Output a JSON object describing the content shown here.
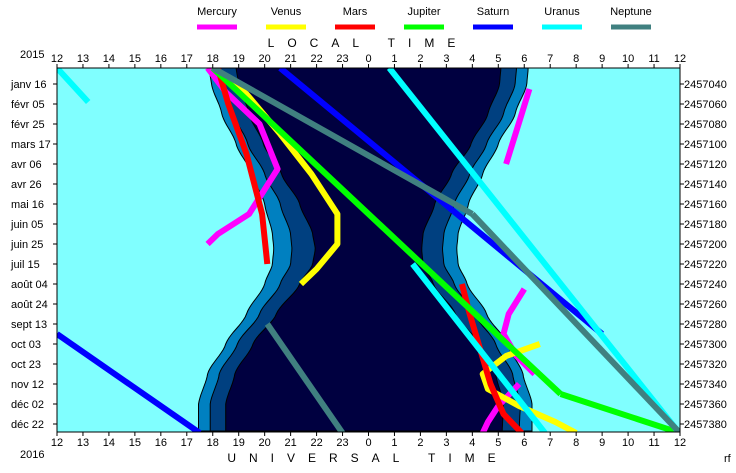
{
  "chart_data": {
    "type": "line",
    "legend_position": "top",
    "year_top": "2015",
    "year_bottom": "2016",
    "corner_label": "rf",
    "top_axis_title": "LOCAL TIME",
    "bottom_axis_title": "UNIVERSAL TIME",
    "x_ticks": [
      "12",
      "13",
      "14",
      "15",
      "16",
      "17",
      "18",
      "19",
      "20",
      "21",
      "22",
      "23",
      "0",
      "1",
      "2",
      "3",
      "4",
      "5",
      "6",
      "7",
      "8",
      "9",
      "10",
      "11",
      "12"
    ],
    "y_ticks_left": [
      "janv 16",
      "févr 05",
      "févr 25",
      "mars 17",
      "avr 06",
      "avr 26",
      "mai 16",
      "juin 05",
      "juin 25",
      "juil 15",
      "août 04",
      "août 24",
      "sept 13",
      "oct 03",
      "oct 23",
      "nov 12",
      "déc 02",
      "déc 22"
    ],
    "y_ticks_right": [
      "2457040",
      "2457060",
      "2457080",
      "2457100",
      "2457120",
      "2457140",
      "2457160",
      "2457180",
      "2457200",
      "2457220",
      "2457240",
      "2457260",
      "2457280",
      "2457300",
      "2457320",
      "2457340",
      "2457360",
      "2457380"
    ],
    "xlim_hours_from_noon": [
      0,
      24
    ],
    "ylim_days_from_jan16": [
      -16,
      349
    ],
    "colors": {
      "day": "#80ffff",
      "civil_twilight": "#0080c0",
      "nautical_twilight": "#004080",
      "night": "#000040"
    },
    "twilight_edges": {
      "days": [
        -16,
        0,
        30,
        60,
        90,
        120,
        150,
        165,
        180,
        200,
        230,
        260,
        290,
        320,
        349
      ],
      "sunset": [
        5.85,
        5.95,
        6.35,
        6.9,
        7.5,
        8.0,
        8.3,
        8.35,
        8.3,
        8.0,
        7.3,
        6.5,
        5.8,
        5.45,
        5.45
      ],
      "civil_end": [
        6.3,
        6.4,
        6.8,
        7.35,
        8.0,
        8.6,
        9.0,
        9.05,
        9.0,
        8.6,
        7.8,
        6.95,
        6.25,
        5.9,
        5.9
      ],
      "nautical_end": [
        6.9,
        7.0,
        7.4,
        7.95,
        8.65,
        9.35,
        9.85,
        9.95,
        9.85,
        9.35,
        8.45,
        7.55,
        6.85,
        6.5,
        6.5
      ],
      "nautical_start": [
        17.1,
        17.05,
        16.6,
        15.95,
        15.2,
        14.55,
        14.1,
        14.05,
        14.1,
        14.5,
        15.35,
        16.25,
        16.9,
        17.2,
        17.15
      ],
      "civil_start": [
        17.7,
        17.65,
        17.2,
        16.55,
        15.9,
        15.3,
        14.9,
        14.85,
        14.9,
        15.3,
        16.1,
        16.9,
        17.55,
        17.85,
        17.8
      ],
      "sunrise": [
        18.15,
        18.1,
        17.65,
        17.0,
        16.4,
        15.85,
        15.45,
        15.4,
        15.45,
        15.8,
        16.55,
        17.35,
        17.95,
        18.3,
        18.3
      ]
    },
    "series": [
      {
        "name": "Mercury",
        "color": "#ff00ff",
        "segments": [
          {
            "x": [
              5.8,
              6.5,
              7.8,
              8.5,
              7.4,
              6.2,
              5.8
            ],
            "days": [
              -16,
              8,
              40,
              85,
              130,
              150,
              160
            ]
          },
          {
            "x": [
              18.0,
              17.4,
              17.2,
              17.7,
              18.4
            ],
            "days": [
              205,
              230,
              250,
              272,
              290
            ]
          },
          {
            "x": [
              18.2,
              17.9,
              17.6,
              17.3
            ],
            "days": [
              5,
              30,
              55,
              80
            ]
          },
          {
            "x": [
              17.8,
              17.0,
              16.6,
              16.4
            ],
            "days": [
              300,
              322,
              338,
              349
            ]
          }
        ]
      },
      {
        "name": "Venus",
        "color": "#ffff00",
        "segments": [
          {
            "x": [
              6.0,
              7.3,
              8.6,
              9.8,
              10.8,
              10.8,
              10.0,
              9.4
            ],
            "days": [
              -16,
              10,
              50,
              90,
              130,
              160,
              185,
              200
            ]
          },
          {
            "x": [
              18.6,
              17.3,
              16.4,
              16.6,
              17.8,
              19.2,
              20.0
            ],
            "days": [
              260,
              272,
              290,
              305,
              322,
              338,
              349
            ]
          }
        ]
      },
      {
        "name": "Mars",
        "color": "#ff0000",
        "segments": [
          {
            "x": [
              6.2,
              6.6,
              7.3,
              7.9,
              8.1
            ],
            "days": [
              -16,
              20,
              70,
              130,
              180
            ]
          },
          {
            "x": [
              15.6,
              15.9,
              16.3,
              16.7,
              17.2,
              17.9
            ],
            "days": [
              200,
              230,
              265,
              300,
              330,
              349
            ]
          }
        ]
      },
      {
        "name": "Jupiter",
        "color": "#00ff00",
        "segments": [
          {
            "x": [
              6.0,
              19.4
            ],
            "days": [
              -16,
              310
            ]
          },
          {
            "x": [
              19.4,
              24.0
            ],
            "days": [
              310,
              349
            ]
          }
        ]
      },
      {
        "name": "Saturn",
        "color": "#0000ff",
        "segments": [
          {
            "x": [
              8.6,
              21.0
            ],
            "days": [
              -16,
              250
            ]
          },
          {
            "x": [
              0,
              5.5
            ],
            "days": [
              250,
              349
            ]
          }
        ]
      },
      {
        "name": "Uranus",
        "color": "#00ffff",
        "segments": [
          {
            "x": [
              12.8,
              24.0
            ],
            "days": [
              -16,
              350
            ]
          },
          {
            "x": [
              0,
              1.2
            ],
            "days": [
              -16,
              18
            ]
          },
          {
            "x": [
              13.7,
              18.8
            ],
            "days": [
              180,
              349
            ]
          }
        ]
      },
      {
        "name": "Neptune",
        "color": "#408080",
        "segments": [
          {
            "x": [
              6.0,
              16.0
            ],
            "days": [
              -16,
              130
            ]
          },
          {
            "x": [
              16.0,
              24.0
            ],
            "days": [
              130,
              349
            ]
          },
          {
            "x": [
              8.1,
              11.0
            ],
            "days": [
              240,
              349
            ]
          }
        ]
      }
    ]
  }
}
